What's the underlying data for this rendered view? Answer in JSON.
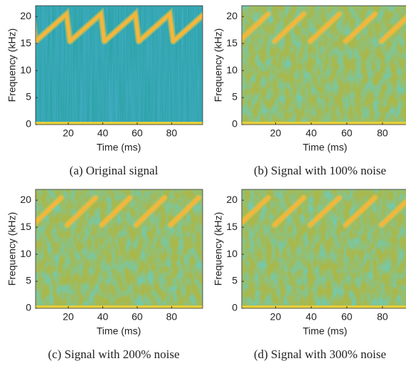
{
  "chart_data": [
    {
      "type": "heatmap",
      "caption": "(a) Original signal",
      "xlabel": "Time (ms)",
      "ylabel": "Frequency (kHz)",
      "xlim": [
        1,
        98
      ],
      "ylim": [
        0,
        22
      ],
      "xticks": [
        20,
        40,
        60,
        80
      ],
      "yticks": [
        0,
        5,
        10,
        15,
        20
      ],
      "noise": false
    },
    {
      "type": "heatmap",
      "caption": "(b) Signal with 100% noise",
      "xlabel": "Time (ms)",
      "ylabel": "Frequency (kHz)",
      "xlim": [
        1,
        98
      ],
      "ylim": [
        0,
        22
      ],
      "xticks": [
        20,
        40,
        60,
        80
      ],
      "yticks": [
        0,
        5,
        10,
        15,
        20
      ],
      "noise": true
    },
    {
      "type": "heatmap",
      "caption": "(c) Signal with 200% noise",
      "xlabel": "Time (ms)",
      "ylabel": "Frequency (kHz)",
      "xlim": [
        1,
        98
      ],
      "ylim": [
        0,
        22
      ],
      "xticks": [
        20,
        40,
        60,
        80
      ],
      "yticks": [
        0,
        5,
        10,
        15,
        20
      ],
      "noise": true
    },
    {
      "type": "heatmap",
      "caption": "(d) Signal with 300% noise",
      "xlabel": "Time (ms)",
      "ylabel": "Frequency (kHz)",
      "xlim": [
        1,
        98
      ],
      "ylim": [
        0,
        22
      ],
      "xticks": [
        20,
        40,
        60,
        80
      ],
      "yticks": [
        0,
        5,
        10,
        15,
        20
      ],
      "noise": true
    }
  ]
}
